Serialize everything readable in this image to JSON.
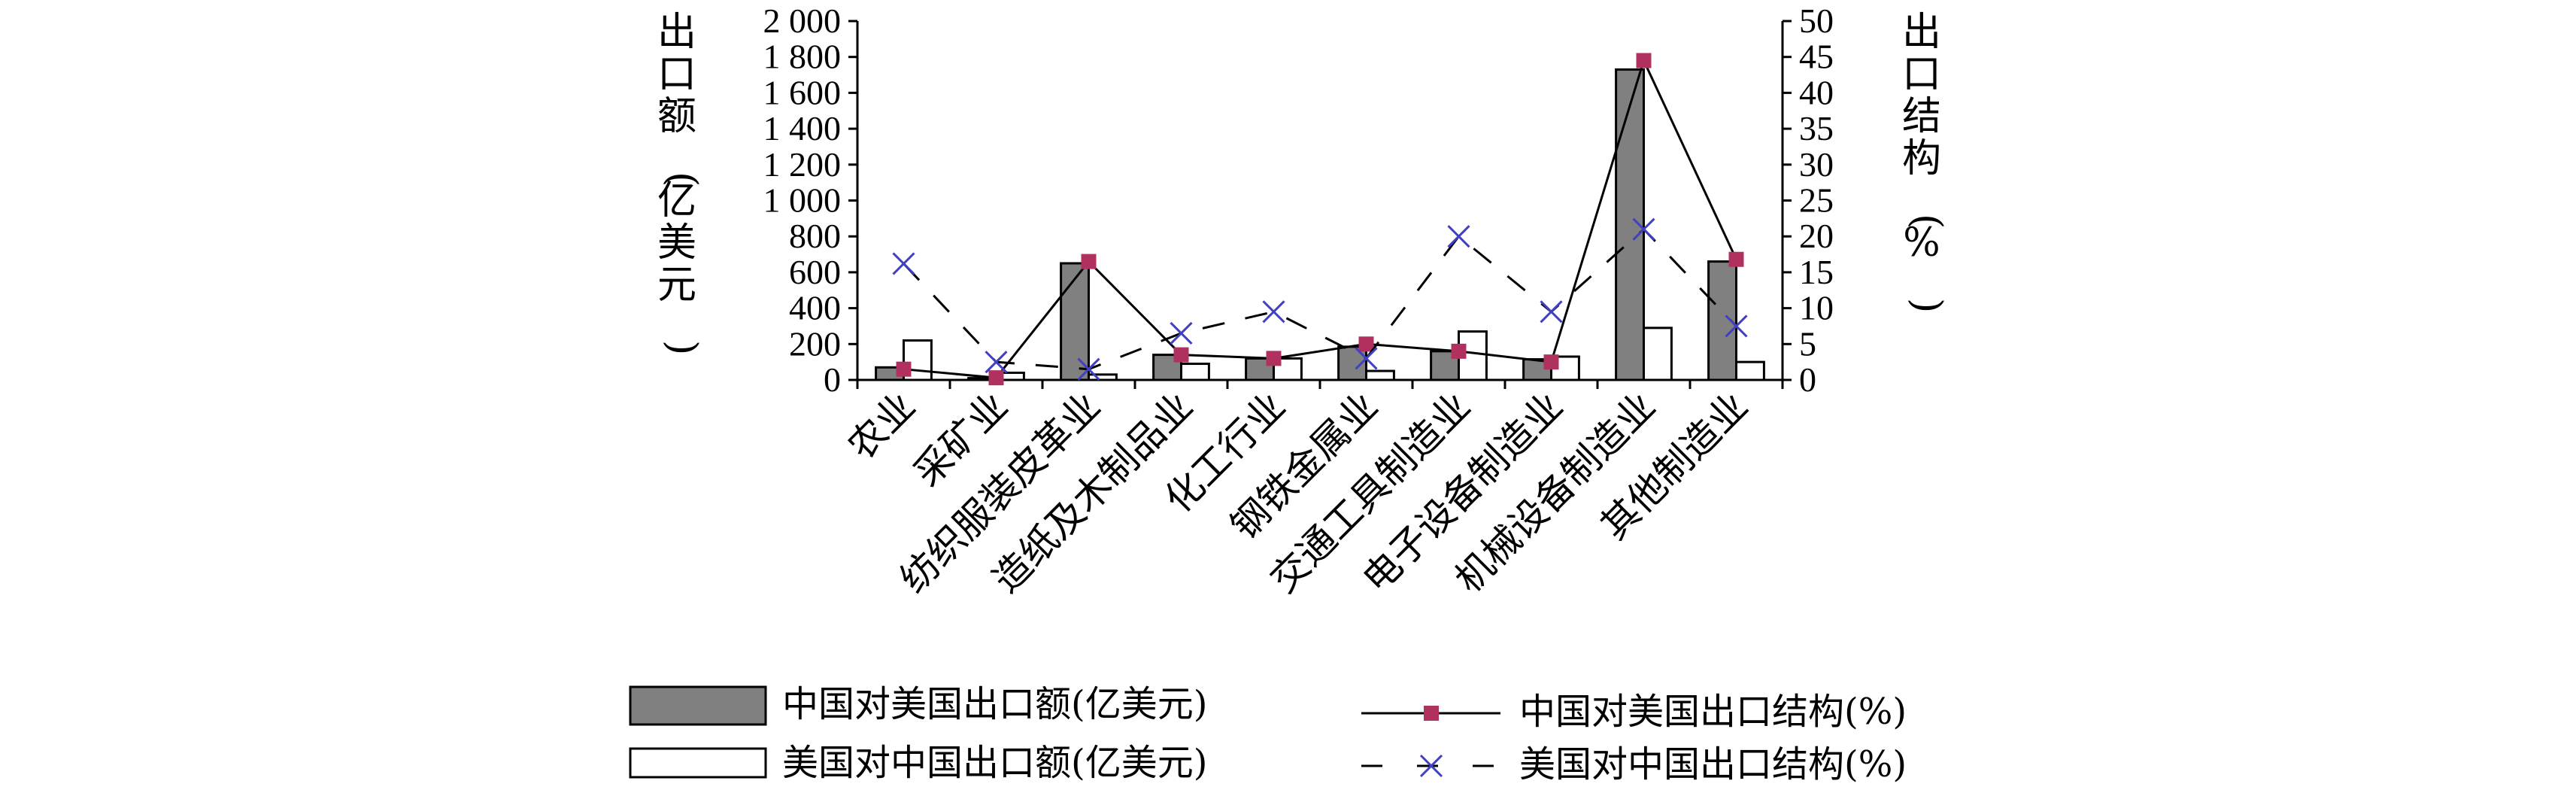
{
  "chart_data": {
    "type": "bar",
    "categories": [
      "农业",
      "采矿业",
      "纺织服装皮革业",
      "造纸及木制品业",
      "化工行业",
      "钢铁金属业",
      "交通工具制造业",
      "电子设备制造业",
      "机械设备制造业",
      "其他制造业"
    ],
    "series": [
      {
        "name": "中国对美国出口额(亿美元)",
        "type": "bar",
        "axis": "left",
        "color": "#808080",
        "values": [
          70,
          10,
          650,
          140,
          120,
          185,
          160,
          115,
          1730,
          660
        ]
      },
      {
        "name": "美国对中国出口额(亿美元)",
        "type": "bar",
        "axis": "left",
        "color": "#ffffff",
        "values": [
          220,
          40,
          30,
          90,
          120,
          50,
          270,
          130,
          290,
          100
        ]
      },
      {
        "name": "中国对美国出口结构(%)",
        "type": "line",
        "axis": "right",
        "color": "#b03060",
        "values": [
          1.5,
          0.3,
          16.5,
          3.5,
          3.0,
          5.0,
          4.0,
          2.5,
          44.5,
          16.8
        ]
      },
      {
        "name": "美国对中国出口结构(%)",
        "type": "line",
        "axis": "right",
        "color": "#4040c0",
        "values": [
          16.2,
          2.5,
          1.5,
          6.5,
          9.5,
          3.0,
          20.0,
          9.5,
          21.0,
          7.5
        ]
      }
    ],
    "ylabel": "出口额(亿美元)",
    "y2label": "出口结构(%)",
    "ylim": [
      0,
      2000
    ],
    "y2lim": [
      0,
      50
    ],
    "yticks": [
      "0",
      "200",
      "400",
      "600",
      "800",
      "1 000",
      "1 200",
      "1 400",
      "1 600",
      "1 800",
      "2 000"
    ],
    "y2ticks": [
      "0",
      "5",
      "10",
      "15",
      "20",
      "25",
      "30",
      "35",
      "40",
      "45",
      "50"
    ],
    "legend": [
      "中国对美国出口额(亿美元)",
      "美国对中国出口额(亿美元)",
      "中国对美国出口结构(%)",
      "美国对中国出口结构(%)"
    ],
    "legend_position": "bottom",
    "grid": false
  }
}
